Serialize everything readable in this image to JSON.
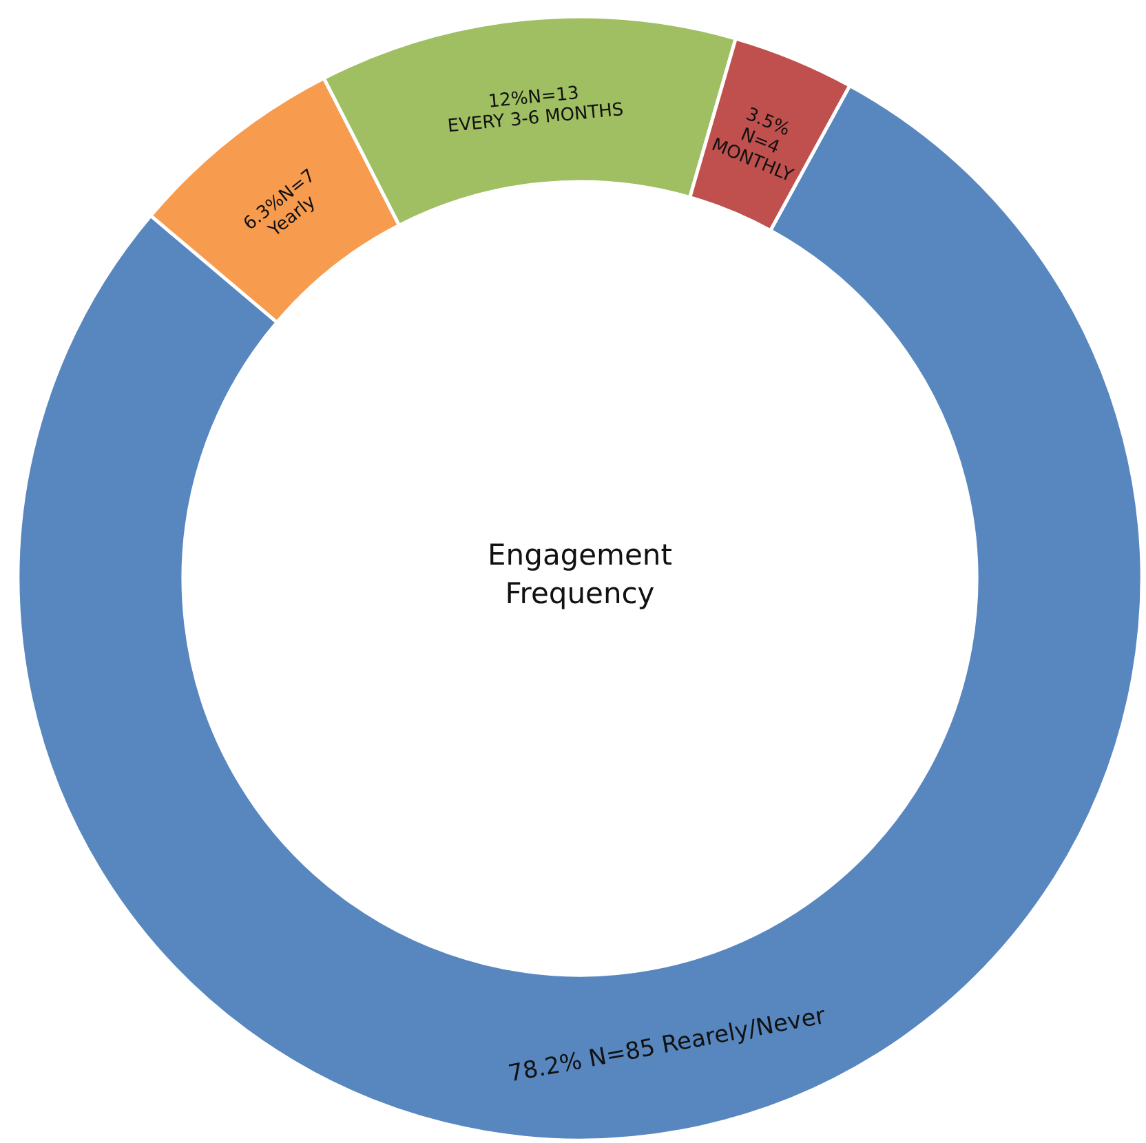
{
  "chart_data": {
    "type": "donut",
    "title": "Engagement Frequency",
    "categories": [
      "Rearely/Never",
      "Yearly",
      "EVERY 3-6 MONTHS",
      "MONTHLY"
    ],
    "values": [
      78.2,
      6.3,
      12,
      3.5
    ],
    "value_labels": [
      "78.2% N=85",
      "6.3%N=7",
      "12%N=13",
      "3.5% N=4"
    ],
    "colors": [
      "#5887c0",
      "#f79b4f",
      "#9fbf62",
      "#c0504d"
    ],
    "legend": false
  }
}
